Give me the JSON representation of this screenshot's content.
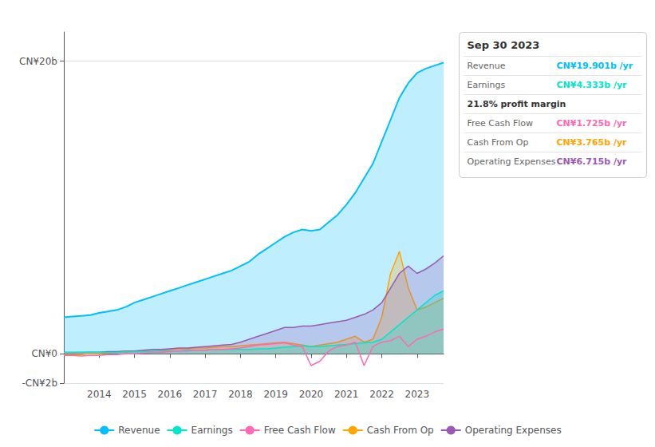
{
  "chart_data": {
    "type": "line",
    "title": "Sep 30 2023",
    "x": [
      2013.0,
      2013.25,
      2013.5,
      2013.75,
      2014.0,
      2014.25,
      2014.5,
      2014.75,
      2015.0,
      2015.25,
      2015.5,
      2015.75,
      2016.0,
      2016.25,
      2016.5,
      2016.75,
      2017.0,
      2017.25,
      2017.5,
      2017.75,
      2018.0,
      2018.25,
      2018.5,
      2018.75,
      2019.0,
      2019.25,
      2019.5,
      2019.75,
      2020.0,
      2020.25,
      2020.5,
      2020.75,
      2021.0,
      2021.25,
      2021.5,
      2021.75,
      2022.0,
      2022.25,
      2022.5,
      2022.75,
      2023.0,
      2023.25,
      2023.5,
      2023.75
    ],
    "series": [
      {
        "name": "Revenue",
        "type": "area",
        "color": "#00bfff",
        "values": [
          2.5,
          2.55,
          2.6,
          2.65,
          2.8,
          2.9,
          3.0,
          3.2,
          3.5,
          3.7,
          3.9,
          4.1,
          4.3,
          4.5,
          4.7,
          4.9,
          5.1,
          5.3,
          5.5,
          5.7,
          6.0,
          6.3,
          6.8,
          7.2,
          7.6,
          8.0,
          8.3,
          8.5,
          8.4,
          8.5,
          9.0,
          9.5,
          10.2,
          11.0,
          12.0,
          13.0,
          14.5,
          16.0,
          17.5,
          18.5,
          19.2,
          19.5,
          19.7,
          19.9
        ]
      },
      {
        "name": "Earnings",
        "type": "area",
        "color": "#00e5cc",
        "values": [
          0.1,
          0.1,
          0.12,
          0.12,
          0.1,
          0.1,
          0.1,
          0.15,
          0.15,
          0.15,
          0.2,
          0.2,
          0.2,
          0.2,
          0.25,
          0.25,
          0.25,
          0.3,
          0.3,
          0.3,
          0.3,
          0.3,
          0.35,
          0.35,
          0.4,
          0.45,
          0.5,
          0.55,
          0.5,
          0.5,
          0.55,
          0.6,
          0.65,
          0.7,
          0.75,
          0.8,
          1.0,
          1.5,
          2.0,
          2.5,
          3.0,
          3.5,
          4.0,
          4.3
        ]
      },
      {
        "name": "Free Cash Flow",
        "type": "line",
        "color": "#ff69b4",
        "values": [
          -0.1,
          -0.1,
          -0.15,
          -0.1,
          -0.1,
          -0.05,
          -0.05,
          0.0,
          0.0,
          0.05,
          0.1,
          0.1,
          0.15,
          0.2,
          0.2,
          0.25,
          0.25,
          0.3,
          0.3,
          0.35,
          0.4,
          0.5,
          0.6,
          0.65,
          0.7,
          0.75,
          0.6,
          0.5,
          -0.8,
          -0.5,
          0.2,
          0.5,
          0.6,
          0.8,
          -0.8,
          0.5,
          0.8,
          0.9,
          1.2,
          0.5,
          1.0,
          1.2,
          1.5,
          1.7
        ]
      },
      {
        "name": "Cash From Op",
        "type": "area",
        "color": "#ffa500",
        "values": [
          -0.05,
          -0.05,
          -0.05,
          0.0,
          0.0,
          0.05,
          0.1,
          0.1,
          0.15,
          0.2,
          0.2,
          0.25,
          0.3,
          0.35,
          0.35,
          0.4,
          0.4,
          0.45,
          0.5,
          0.5,
          0.55,
          0.6,
          0.65,
          0.7,
          0.75,
          0.8,
          0.7,
          0.6,
          0.5,
          0.6,
          0.7,
          0.8,
          1.0,
          1.2,
          0.8,
          1.0,
          2.5,
          5.5,
          7.0,
          4.5,
          3.0,
          3.2,
          3.5,
          3.8
        ]
      },
      {
        "name": "Operating Expenses",
        "type": "area",
        "color": "#9b59b6",
        "values": [
          0.1,
          0.1,
          0.1,
          0.12,
          0.12,
          0.15,
          0.15,
          0.2,
          0.2,
          0.25,
          0.3,
          0.3,
          0.35,
          0.4,
          0.4,
          0.45,
          0.5,
          0.55,
          0.6,
          0.65,
          0.8,
          1.0,
          1.2,
          1.4,
          1.6,
          1.8,
          1.8,
          1.9,
          1.9,
          2.0,
          2.1,
          2.2,
          2.3,
          2.5,
          2.7,
          3.0,
          3.5,
          4.5,
          5.5,
          6.0,
          5.5,
          5.8,
          6.2,
          6.7
        ]
      }
    ],
    "xlim": [
      2013.0,
      2023.75
    ],
    "xticks": [
      2014,
      2015,
      2016,
      2017,
      2018,
      2019,
      2020,
      2021,
      2022,
      2023
    ],
    "ylim": [
      -2,
      22
    ],
    "yticks": [
      {
        "value": -2,
        "label": "-CN¥2b"
      },
      {
        "value": 0,
        "label": "CN¥0"
      },
      {
        "value": 20,
        "label": "CN¥20b"
      }
    ],
    "grid": true,
    "legend": "bottom",
    "annotations": [
      {
        "label": "Revenue",
        "text": "CN¥19.901b /yr",
        "color": "#00bfff"
      },
      {
        "label": "Earnings",
        "text": "CN¥4.333b /yr",
        "color": "#00e5cc"
      },
      {
        "text": "21.8% profit margin"
      },
      {
        "label": "Free Cash Flow",
        "text": "CN¥1.725b /yr",
        "color": "#ff69b4"
      },
      {
        "label": "Cash From Op",
        "text": "CN¥3.765b /yr",
        "color": "#ffa500"
      },
      {
        "label": "Operating Expenses",
        "text": "CN¥6.715b /yr",
        "color": "#9b59b6"
      }
    ]
  }
}
